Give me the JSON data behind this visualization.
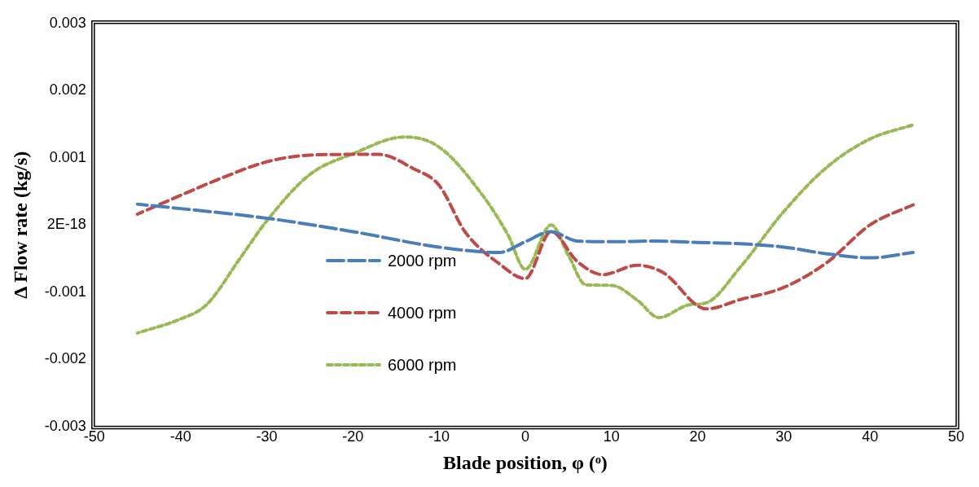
{
  "chart_data": {
    "type": "line",
    "xlabel": "Blade position, φ (ᵒ)",
    "ylabel": "Δ Flow rate (kg/s)",
    "xlim": [
      -50,
      50
    ],
    "xticks": [
      -50,
      -40,
      -30,
      -20,
      -10,
      0,
      10,
      20,
      30,
      40,
      50
    ],
    "ylim": [
      -0.003,
      0.003
    ],
    "yticks": [
      -0.003,
      -0.002,
      -0.001,
      {
        "value": 0,
        "label": "2E-18"
      },
      0.001,
      0.002,
      0.003
    ],
    "grid": false,
    "legend": "left",
    "marker": "none",
    "series": [
      {
        "name": "2000 rpm",
        "color": "#4a7ebb",
        "line_style": "dashed",
        "x": [
          -45,
          -30,
          -20,
          -10,
          -3,
          0,
          3,
          6,
          10,
          15,
          20,
          25,
          30,
          35,
          40,
          45
        ],
        "values": [
          0.00031,
          0.0001,
          -0.0001,
          -0.00033,
          -0.00041,
          -0.00025,
          -0.0001,
          -0.00024,
          -0.00025,
          -0.00024,
          -0.00026,
          -0.00028,
          -0.00033,
          -0.00043,
          -0.00049,
          -0.00041
        ]
      },
      {
        "name": "4000 rpm",
        "color": "#be4b48",
        "line_style": "dashed",
        "x": [
          -45,
          -40,
          -35,
          -30,
          -25,
          -20,
          -17,
          -13,
          -10,
          -7,
          -3,
          0,
          3,
          6,
          9,
          13,
          16,
          21,
          25,
          30,
          35,
          40,
          45
        ],
        "values": [
          0.00016,
          0.00044,
          0.00071,
          0.00094,
          0.00104,
          0.00105,
          0.00105,
          0.00084,
          0.00059,
          -0.0001,
          -0.00058,
          -0.0008,
          -0.0001,
          -0.00054,
          -0.00074,
          -0.0006,
          -0.00071,
          -0.00125,
          -0.00111,
          -0.00093,
          -0.00056,
          0,
          0.0003
        ]
      },
      {
        "name": "6000 rpm",
        "color": "#98b954",
        "line_style": "dotted",
        "x": [
          -45,
          -40,
          -37,
          -33,
          -30,
          -25,
          -20,
          -14,
          -10,
          -5,
          -2,
          0,
          3,
          5,
          7,
          10,
          13,
          15.5,
          19,
          21,
          25,
          30,
          35,
          40,
          45
        ],
        "values": [
          -0.00161,
          -0.0014,
          -0.00119,
          -0.00048,
          6e-05,
          0.00075,
          0.00106,
          0.00131,
          0.00116,
          0.00045,
          -0.00015,
          -0.00066,
          0,
          -0.00045,
          -0.00089,
          -0.0009,
          -0.00112,
          -0.00138,
          -0.00119,
          -0.00116,
          -0.00062,
          0.0002,
          0.00086,
          0.00128,
          0.00149
        ]
      }
    ]
  }
}
